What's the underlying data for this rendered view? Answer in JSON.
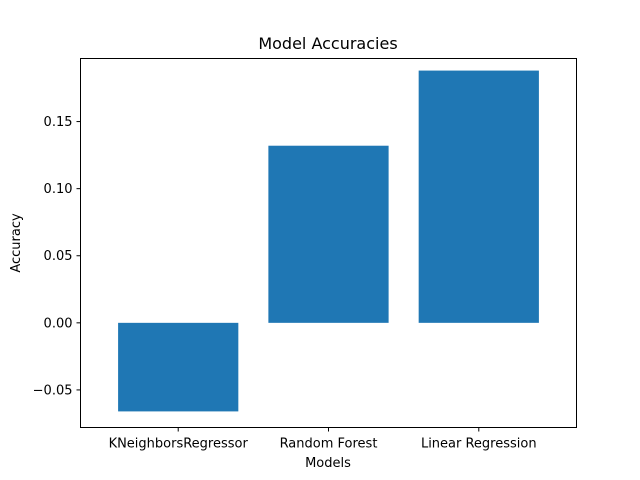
{
  "chart_data": {
    "type": "bar",
    "title": "Model Accuracies",
    "xlabel": "Models",
    "ylabel": "Accuracy",
    "categories": [
      "KNeighborsRegressor",
      "Random Forest",
      "Linear Regression"
    ],
    "values": [
      -0.066,
      0.132,
      0.188
    ],
    "ylim": [
      -0.078,
      0.197
    ],
    "yticks": [
      -0.05,
      0.0,
      0.05,
      0.1,
      0.15
    ],
    "ytick_labels": [
      "−0.05",
      "0.00",
      "0.05",
      "0.10",
      "0.15"
    ],
    "bar_color": "#1f77b4",
    "grid": false,
    "legend": false
  }
}
